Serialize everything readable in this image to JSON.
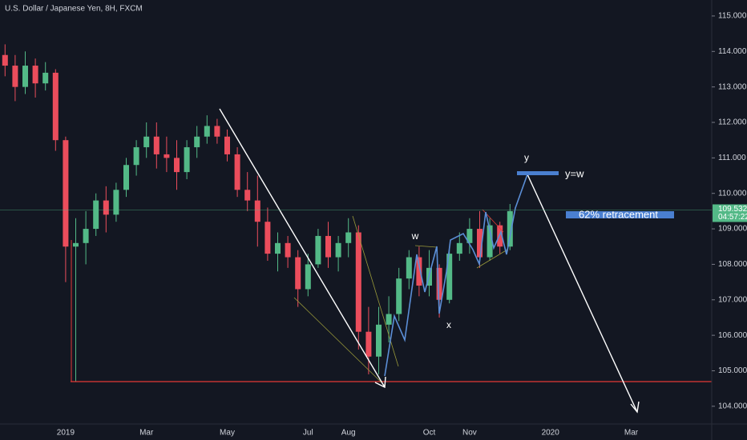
{
  "chart_data": {
    "type": "candlestick",
    "title": "U.S. Dollar / Japanese Yen, 8H, FXCM",
    "categories": [
      null,
      null,
      null,
      null,
      null,
      null,
      "2019",
      null,
      null,
      null,
      null,
      null,
      null,
      null,
      "Mar",
      null,
      null,
      null,
      null,
      null,
      null,
      null,
      "May",
      null,
      null,
      null,
      null,
      null,
      null,
      null,
      "Jul",
      null,
      null,
      null,
      "Aug",
      null,
      null,
      null,
      null,
      null,
      null,
      null,
      "Oct",
      null,
      null,
      null,
      "Nov",
      null,
      null,
      null,
      null,
      null,
      null,
      null,
      "2020",
      null,
      null,
      null,
      null,
      null,
      null,
      null,
      "Mar",
      null,
      null,
      null,
      null,
      null,
      null,
      null
    ],
    "open": [
      113.9,
      113.6,
      113.0,
      113.6,
      113.1,
      113.4,
      111.5,
      108.5,
      108.6,
      109.0,
      109.8,
      109.4,
      110.1,
      110.8,
      111.3,
      111.6,
      111.1,
      111.0,
      110.6,
      111.3,
      111.6,
      111.9,
      111.6,
      111.1,
      110.1,
      109.8,
      109.2,
      108.3,
      108.6,
      108.2,
      107.3,
      108.0,
      108.8,
      108.2,
      108.6,
      108.9,
      106.1,
      105.4,
      106.3,
      106.6,
      107.6,
      108.2,
      107.4,
      107.9,
      107.0,
      108.3,
      108.6,
      109.0,
      108.2,
      109.1,
      108.5,
      null,
      null,
      null,
      null,
      null,
      null,
      null,
      null,
      null,
      null,
      null,
      null,
      null,
      null,
      null,
      null,
      null,
      null,
      null
    ],
    "high": [
      114.2,
      113.9,
      114.0,
      113.8,
      113.7,
      113.5,
      111.6,
      109.3,
      109.5,
      110.0,
      110.2,
      110.3,
      111.0,
      111.5,
      112.0,
      112.0,
      111.6,
      111.5,
      111.5,
      111.9,
      112.2,
      112.1,
      111.8,
      111.3,
      110.6,
      110.5,
      109.6,
      108.9,
      108.8,
      108.4,
      108.3,
      109.0,
      109.2,
      108.8,
      109.3,
      109.1,
      106.8,
      106.8,
      107.1,
      107.9,
      108.4,
      108.5,
      108.4,
      108.0,
      108.5,
      108.9,
      109.3,
      109.5,
      109.3,
      109.2,
      109.7,
      null,
      null,
      null,
      null,
      null,
      null,
      null,
      null,
      null,
      null,
      null,
      null,
      null,
      null,
      null,
      null,
      null,
      null,
      null
    ],
    "low": [
      113.3,
      112.6,
      112.8,
      112.7,
      112.9,
      111.2,
      107.5,
      104.7,
      108.0,
      108.8,
      108.9,
      109.2,
      109.9,
      110.5,
      111.0,
      110.7,
      110.6,
      110.1,
      110.4,
      111.0,
      111.4,
      111.4,
      110.9,
      109.9,
      109.5,
      108.5,
      108.1,
      107.8,
      107.9,
      106.8,
      107.1,
      107.9,
      107.9,
      107.8,
      108.2,
      105.6,
      104.9,
      104.9,
      105.8,
      106.4,
      107.3,
      107.1,
      107.1,
      106.5,
      106.9,
      108.1,
      108.3,
      107.9,
      108.1,
      108.3,
      108.4,
      null,
      null,
      null,
      null,
      null,
      null,
      null,
      null,
      null,
      null,
      null,
      null,
      null,
      null,
      null,
      null,
      null,
      null,
      null
    ],
    "close": [
      113.6,
      113.0,
      113.6,
      113.1,
      113.4,
      111.5,
      108.5,
      108.6,
      109.0,
      109.8,
      109.4,
      110.1,
      110.8,
      111.3,
      111.6,
      111.1,
      111.0,
      110.6,
      111.3,
      111.6,
      111.9,
      111.6,
      111.1,
      110.1,
      109.8,
      109.2,
      108.3,
      108.6,
      108.2,
      107.3,
      108.0,
      108.8,
      108.2,
      108.6,
      108.9,
      106.1,
      105.4,
      106.3,
      106.6,
      107.6,
      108.2,
      107.4,
      107.9,
      107.0,
      108.3,
      108.6,
      109.0,
      108.2,
      109.1,
      108.5,
      109.5,
      null,
      null,
      null,
      null,
      null,
      null,
      null,
      null,
      null,
      null,
      null,
      null,
      null,
      null,
      null,
      null,
      null,
      null,
      null
    ],
    "up_color": "#53b987",
    "down_color": "#eb4d5c",
    "ylim": [
      103.5,
      115.45
    ],
    "yticks": [
      {
        "value": 104,
        "label": "104.000"
      },
      {
        "value": 105,
        "label": "105.000"
      },
      {
        "value": 106,
        "label": "106.000"
      },
      {
        "value": 107,
        "label": "107.000"
      },
      {
        "value": 108,
        "label": "108.000"
      },
      {
        "value": 109,
        "label": "109.000"
      },
      {
        "value": 110,
        "label": "110.000"
      },
      {
        "value": 111,
        "label": "111.000"
      },
      {
        "value": 112,
        "label": "112.000"
      },
      {
        "value": 113,
        "label": "113.000"
      },
      {
        "value": 114,
        "label": "114.000"
      },
      {
        "value": 115,
        "label": "115.000"
      }
    ],
    "last_price": 109.532,
    "last_price_color": "#53b987",
    "countdown": "04:57:22",
    "grid": false,
    "annotations": {
      "w": "w",
      "x": "x",
      "y": "y",
      "target": "y=w",
      "retracement": "62% retracement"
    }
  }
}
